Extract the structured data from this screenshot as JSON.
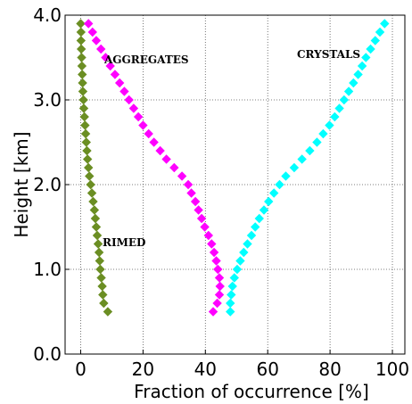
{
  "chart_data": {
    "type": "scatter",
    "xlabel": "Fraction of occurrence  [%]",
    "ylabel": "Height [km]",
    "xlim": [
      -5,
      104
    ],
    "ylim": [
      0,
      4
    ],
    "xticks": [
      0,
      20,
      40,
      60,
      80,
      100
    ],
    "yticks": [
      {
        "value": 0,
        "label": "0.0"
      },
      {
        "value": 1,
        "label": "1.0"
      },
      {
        "value": 2,
        "label": "2.0"
      },
      {
        "value": 3,
        "label": "3.0"
      },
      {
        "value": 4,
        "label": "4.0"
      }
    ],
    "grid": true,
    "y": [
      0.5,
      0.6,
      0.7,
      0.8,
      0.9,
      1.0,
      1.1,
      1.2,
      1.3,
      1.4,
      1.5,
      1.6,
      1.7,
      1.8,
      1.9,
      2.0,
      2.1,
      2.2,
      2.3,
      2.4,
      2.5,
      2.6,
      2.7,
      2.8,
      2.9,
      3.0,
      3.1,
      3.2,
      3.3,
      3.4,
      3.5,
      3.6,
      3.7,
      3.8,
      3.9
    ],
    "series": [
      {
        "name": "RIMED",
        "color": "#6b8e23",
        "x": [
          8.7,
          7.4,
          7.1,
          6.9,
          6.6,
          6.3,
          6.1,
          5.9,
          5.6,
          5.3,
          5.0,
          4.7,
          4.4,
          4.0,
          3.6,
          3.2,
          2.8,
          2.5,
          2.2,
          2.0,
          1.8,
          1.6,
          1.4,
          1.2,
          1.0,
          0.9,
          0.7,
          0.6,
          0.5,
          0.4,
          0.3,
          0.2,
          0.1,
          0.1,
          0
        ]
      },
      {
        "name": "AGGREGATES",
        "color": "#ff00ff",
        "x": [
          42.5,
          43.8,
          44.5,
          44.7,
          44.5,
          44.0,
          43.5,
          42.8,
          42.0,
          41.0,
          39.8,
          38.8,
          37.8,
          36.8,
          35.5,
          34.5,
          32.5,
          30.0,
          27.5,
          25.5,
          23.5,
          21.8,
          20.0,
          18.5,
          17.0,
          15.5,
          14.0,
          12.5,
          11.0,
          9.5,
          8.0,
          6.5,
          5.0,
          3.8,
          2.5
        ]
      },
      {
        "name": "CRYSTALS",
        "color": "#00ffff",
        "x": [
          48.0,
          48.0,
          48.3,
          48.7,
          49.3,
          50.2,
          51.2,
          52.3,
          53.5,
          54.8,
          56.0,
          57.3,
          58.8,
          60.3,
          62.0,
          63.8,
          65.8,
          68.5,
          71.0,
          73.5,
          75.8,
          77.8,
          79.8,
          81.5,
          83.0,
          84.5,
          86.0,
          87.5,
          89.0,
          90.3,
          91.5,
          93.0,
          94.5,
          96.0,
          97.5
        ]
      }
    ]
  }
}
